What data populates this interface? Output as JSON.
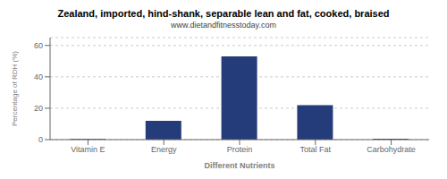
{
  "chart_data": {
    "type": "bar",
    "title": "Zealand, imported, hind-shank, separable lean and fat, cooked, braised",
    "subtitle": "www.dietandfitnesstoday.com",
    "categories": [
      "Vitamin E",
      "Energy",
      "Protein",
      "Total Fat",
      "Carbohydrate"
    ],
    "values": [
      0.4,
      12,
      53,
      22,
      0.5
    ],
    "color": "#253C7A",
    "xlabel": "Different Nutrients",
    "ylabel": "Percentage of RDH (%)",
    "ylim": [
      0,
      65
    ],
    "yticks": [
      0,
      20,
      40,
      60
    ],
    "grid": true
  }
}
